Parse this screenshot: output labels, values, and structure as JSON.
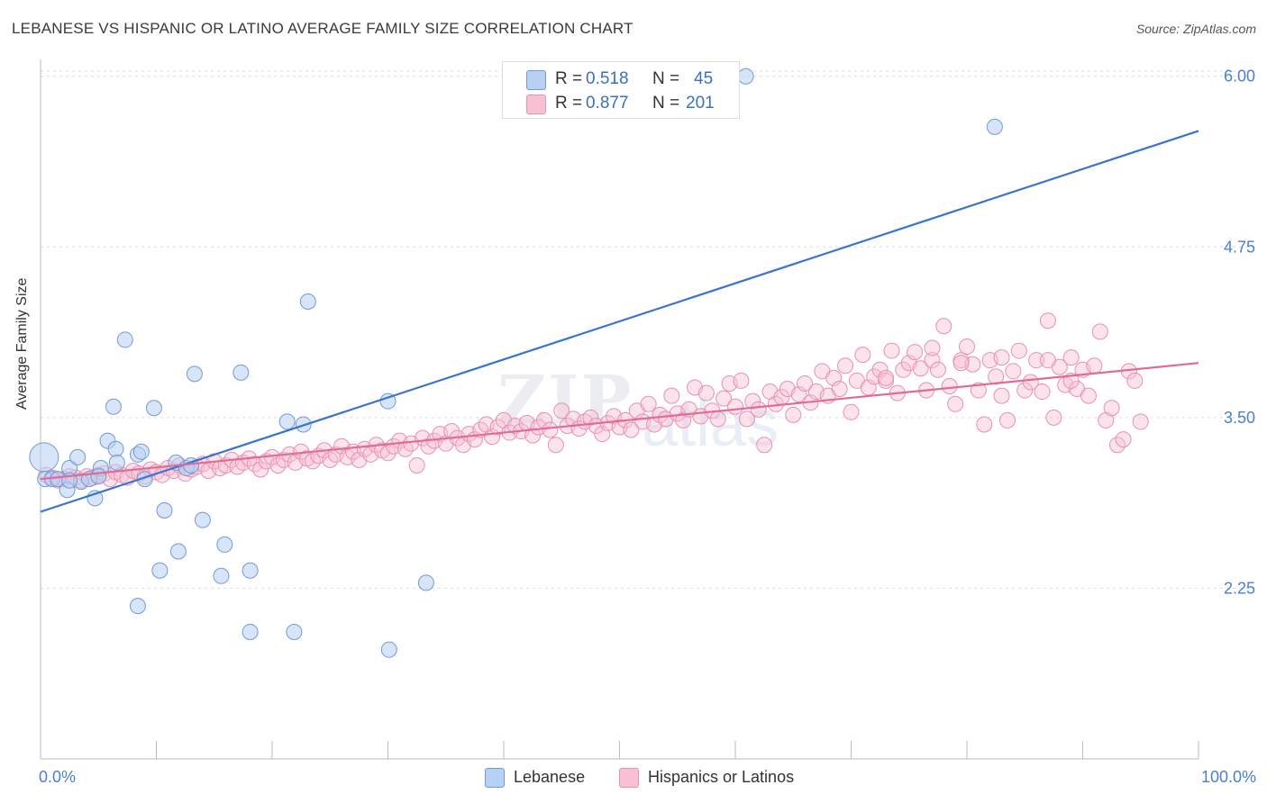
{
  "title": "LEBANESE VS HISPANIC OR LATINO AVERAGE FAMILY SIZE CORRELATION CHART",
  "source": "Source: ZipAtlas.com",
  "watermark": {
    "zip": "ZIP",
    "atlas": "atlas"
  },
  "legend_top": [
    {
      "r_label": "R =",
      "r_value": "0.518",
      "n_label": "N =",
      "n_value": "45"
    },
    {
      "r_label": "R =",
      "r_value": "0.877",
      "n_label": "N =",
      "n_value": "201"
    }
  ],
  "legend_bottom": [
    "Lebanese",
    "Hispanics or Latinos"
  ],
  "colors": {
    "lebanese_fill": "#b8d0f2",
    "lebanese_stroke": "#6f9ad8",
    "lebanese_line": "#3a73d0",
    "hispanic_fill": "#f7c1d3",
    "hispanic_stroke": "#e98fb0",
    "hispanic_line": "#e06b98",
    "tick_text": "#4a7fd4",
    "grid": "#dcdcdc"
  },
  "chart_data": {
    "type": "scatter",
    "xlabel": "",
    "ylabel": "Average Family Size",
    "xlim": [
      0,
      100
    ],
    "ylim": [
      1.0,
      6.15
    ],
    "x_tick_labels": [
      "0.0%",
      "100.0%"
    ],
    "y_ticks": [
      2.25,
      3.5,
      4.75,
      6.0
    ],
    "y_tick_labels": [
      "2.25",
      "3.50",
      "4.75",
      "6.00"
    ],
    "grid": "horizontal dashed",
    "series": [
      {
        "name": "Lebanese",
        "trend": {
          "x": [
            0,
            100
          ],
          "y": [
            2.81,
            5.6
          ]
        },
        "points": [
          [
            0.3,
            3.21,
            1
          ],
          [
            0.4,
            3.05,
            0
          ],
          [
            1.0,
            3.05,
            0
          ],
          [
            1.5,
            3.05,
            0
          ],
          [
            2.3,
            2.97,
            0
          ],
          [
            2.5,
            3.13,
            0
          ],
          [
            3.2,
            3.21,
            0
          ],
          [
            3.5,
            3.03,
            0
          ],
          [
            4.2,
            3.05,
            0
          ],
          [
            4.7,
            2.91,
            0
          ],
          [
            5.2,
            3.13,
            0
          ],
          [
            5.0,
            3.07,
            0
          ],
          [
            5.8,
            3.33,
            0
          ],
          [
            6.5,
            3.27,
            0
          ],
          [
            6.6,
            3.17,
            0
          ],
          [
            6.3,
            3.58,
            0
          ],
          [
            7.3,
            4.07,
            0
          ],
          [
            8.4,
            3.23,
            0
          ],
          [
            8.7,
            3.25,
            0
          ],
          [
            9.8,
            3.57,
            0
          ],
          [
            10.3,
            2.38,
            0
          ],
          [
            10.7,
            2.82,
            0
          ],
          [
            11.7,
            3.17,
            0
          ],
          [
            11.9,
            2.52,
            0
          ],
          [
            12.6,
            3.13,
            0
          ],
          [
            13.0,
            3.15,
            0
          ],
          [
            13.3,
            3.82,
            0
          ],
          [
            14.0,
            2.75,
            0
          ],
          [
            15.6,
            2.34,
            0
          ],
          [
            15.9,
            2.57,
            0
          ],
          [
            17.3,
            3.83,
            0
          ],
          [
            18.1,
            1.93,
            0
          ],
          [
            18.1,
            2.38,
            0
          ],
          [
            21.3,
            3.47,
            0
          ],
          [
            21.9,
            1.93,
            0
          ],
          [
            22.7,
            3.45,
            0
          ],
          [
            23.1,
            4.35,
            0
          ],
          [
            30.0,
            3.62,
            0
          ],
          [
            30.1,
            1.8,
            0
          ],
          [
            33.3,
            2.29,
            0
          ],
          [
            8.4,
            2.12,
            0
          ],
          [
            60.9,
            6.0,
            0
          ],
          [
            82.4,
            5.63,
            0
          ],
          [
            2.5,
            3.04,
            0
          ],
          [
            9.0,
            3.05,
            0
          ]
        ]
      },
      {
        "name": "Hispanics or Latinos",
        "trend": {
          "x": [
            0,
            100
          ],
          "y": [
            3.05,
            3.9
          ]
        },
        "points": [
          [
            0.5,
            3.08
          ],
          [
            1.0,
            3.06
          ],
          [
            1.5,
            3.04
          ],
          [
            2.0,
            3.05
          ],
          [
            2.5,
            3.07
          ],
          [
            3.0,
            3.06
          ],
          [
            3.5,
            3.04
          ],
          [
            4.0,
            3.07
          ],
          [
            4.5,
            3.06
          ],
          [
            5.0,
            3.08
          ],
          [
            5.5,
            3.09
          ],
          [
            6.0,
            3.05
          ],
          [
            6.5,
            3.1
          ],
          [
            7.0,
            3.08
          ],
          [
            7.5,
            3.06
          ],
          [
            8.0,
            3.11
          ],
          [
            8.5,
            3.09
          ],
          [
            9.0,
            3.07
          ],
          [
            9.5,
            3.12
          ],
          [
            10.0,
            3.1
          ],
          [
            10.5,
            3.08
          ],
          [
            11.0,
            3.13
          ],
          [
            11.5,
            3.11
          ],
          [
            12.0,
            3.15
          ],
          [
            12.5,
            3.09
          ],
          [
            13.0,
            3.12
          ],
          [
            13.5,
            3.14
          ],
          [
            14.0,
            3.16
          ],
          [
            14.5,
            3.11
          ],
          [
            15.0,
            3.18
          ],
          [
            15.5,
            3.13
          ],
          [
            16.0,
            3.15
          ],
          [
            16.5,
            3.19
          ],
          [
            17.0,
            3.14
          ],
          [
            17.5,
            3.17
          ],
          [
            18.0,
            3.2
          ],
          [
            18.5,
            3.16
          ],
          [
            19.0,
            3.12
          ],
          [
            19.5,
            3.18
          ],
          [
            20.0,
            3.21
          ],
          [
            20.5,
            3.15
          ],
          [
            21.0,
            3.19
          ],
          [
            21.5,
            3.23
          ],
          [
            22.0,
            3.17
          ],
          [
            22.5,
            3.25
          ],
          [
            23.0,
            3.2
          ],
          [
            23.5,
            3.18
          ],
          [
            24.0,
            3.22
          ],
          [
            24.5,
            3.26
          ],
          [
            25.0,
            3.19
          ],
          [
            25.5,
            3.23
          ],
          [
            26.0,
            3.29
          ],
          [
            26.5,
            3.21
          ],
          [
            27.0,
            3.25
          ],
          [
            27.5,
            3.19
          ],
          [
            28.0,
            3.27
          ],
          [
            28.5,
            3.23
          ],
          [
            29.0,
            3.3
          ],
          [
            29.5,
            3.26
          ],
          [
            30.0,
            3.24
          ],
          [
            30.5,
            3.29
          ],
          [
            31.0,
            3.33
          ],
          [
            31.5,
            3.27
          ],
          [
            32.0,
            3.31
          ],
          [
            32.5,
            3.15
          ],
          [
            33.0,
            3.35
          ],
          [
            33.5,
            3.29
          ],
          [
            34.0,
            3.33
          ],
          [
            34.5,
            3.38
          ],
          [
            35.0,
            3.31
          ],
          [
            35.5,
            3.4
          ],
          [
            36.0,
            3.35
          ],
          [
            36.5,
            3.3
          ],
          [
            37.0,
            3.38
          ],
          [
            37.5,
            3.34
          ],
          [
            38.0,
            3.41
          ],
          [
            38.5,
            3.45
          ],
          [
            39.0,
            3.36
          ],
          [
            39.5,
            3.43
          ],
          [
            40.0,
            3.48
          ],
          [
            40.5,
            3.39
          ],
          [
            41.0,
            3.44
          ],
          [
            41.5,
            3.4
          ],
          [
            42.0,
            3.46
          ],
          [
            42.5,
            3.37
          ],
          [
            43.0,
            3.43
          ],
          [
            43.5,
            3.48
          ],
          [
            44.0,
            3.41
          ],
          [
            44.5,
            3.3
          ],
          [
            45.0,
            3.55
          ],
          [
            45.5,
            3.44
          ],
          [
            46.0,
            3.49
          ],
          [
            46.5,
            3.42
          ],
          [
            47.0,
            3.47
          ],
          [
            47.5,
            3.5
          ],
          [
            48.0,
            3.44
          ],
          [
            48.5,
            3.38
          ],
          [
            49.0,
            3.46
          ],
          [
            49.5,
            3.51
          ],
          [
            50.0,
            3.43
          ],
          [
            50.5,
            3.48
          ],
          [
            51.0,
            3.41
          ],
          [
            51.5,
            3.55
          ],
          [
            52.0,
            3.47
          ],
          [
            52.5,
            3.6
          ],
          [
            53.0,
            3.45
          ],
          [
            53.5,
            3.52
          ],
          [
            54.0,
            3.49
          ],
          [
            54.5,
            3.66
          ],
          [
            55.0,
            3.53
          ],
          [
            55.5,
            3.48
          ],
          [
            56.0,
            3.56
          ],
          [
            56.5,
            3.72
          ],
          [
            57.0,
            3.51
          ],
          [
            57.5,
            3.68
          ],
          [
            58.0,
            3.55
          ],
          [
            58.5,
            3.49
          ],
          [
            59.0,
            3.64
          ],
          [
            59.5,
            3.75
          ],
          [
            60.0,
            3.58
          ],
          [
            60.5,
            3.77
          ],
          [
            61.0,
            3.49
          ],
          [
            61.5,
            3.62
          ],
          [
            62.0,
            3.56
          ],
          [
            62.5,
            3.3
          ],
          [
            63.0,
            3.69
          ],
          [
            63.5,
            3.6
          ],
          [
            64.0,
            3.65
          ],
          [
            64.5,
            3.71
          ],
          [
            65.0,
            3.52
          ],
          [
            65.5,
            3.67
          ],
          [
            66.0,
            3.75
          ],
          [
            66.5,
            3.61
          ],
          [
            67.0,
            3.69
          ],
          [
            67.5,
            3.84
          ],
          [
            68.0,
            3.66
          ],
          [
            68.5,
            3.79
          ],
          [
            69.0,
            3.71
          ],
          [
            69.5,
            3.88
          ],
          [
            70.0,
            3.54
          ],
          [
            70.5,
            3.77
          ],
          [
            71.0,
            3.96
          ],
          [
            71.5,
            3.72
          ],
          [
            72.0,
            3.8
          ],
          [
            72.5,
            3.85
          ],
          [
            73.0,
            3.77
          ],
          [
            73.5,
            3.99
          ],
          [
            74.0,
            3.68
          ],
          [
            74.5,
            3.85
          ],
          [
            75.0,
            3.9
          ],
          [
            75.5,
            3.98
          ],
          [
            76.0,
            3.86
          ],
          [
            76.5,
            3.7
          ],
          [
            77.0,
            3.92
          ],
          [
            77.5,
            3.85
          ],
          [
            78.0,
            4.17
          ],
          [
            78.5,
            3.73
          ],
          [
            79.0,
            3.6
          ],
          [
            79.5,
            3.92
          ],
          [
            80.0,
            4.02
          ],
          [
            80.5,
            3.89
          ],
          [
            81.0,
            3.7
          ],
          [
            81.5,
            3.45
          ],
          [
            82.0,
            3.92
          ],
          [
            82.5,
            3.8
          ],
          [
            83.0,
            3.66
          ],
          [
            83.5,
            3.48
          ],
          [
            84.0,
            3.84
          ],
          [
            84.5,
            3.99
          ],
          [
            85.0,
            3.7
          ],
          [
            85.5,
            3.76
          ],
          [
            86.0,
            3.92
          ],
          [
            86.5,
            3.69
          ],
          [
            87.0,
            4.21
          ],
          [
            87.5,
            3.5
          ],
          [
            88.0,
            3.87
          ],
          [
            88.5,
            3.74
          ],
          [
            89.0,
            3.94
          ],
          [
            89.5,
            3.71
          ],
          [
            90.0,
            3.85
          ],
          [
            90.5,
            3.66
          ],
          [
            91.0,
            3.88
          ],
          [
            91.5,
            4.13
          ],
          [
            92.0,
            3.48
          ],
          [
            92.5,
            3.57
          ],
          [
            93.0,
            3.3
          ],
          [
            93.5,
            3.34
          ],
          [
            94.0,
            3.84
          ],
          [
            94.5,
            3.77
          ],
          [
            95.0,
            3.47
          ],
          [
            73.0,
            3.79
          ],
          [
            77.0,
            4.01
          ],
          [
            87.0,
            3.92
          ],
          [
            89.0,
            3.77
          ],
          [
            79.5,
            3.9
          ],
          [
            83.0,
            3.94
          ]
        ]
      }
    ]
  }
}
